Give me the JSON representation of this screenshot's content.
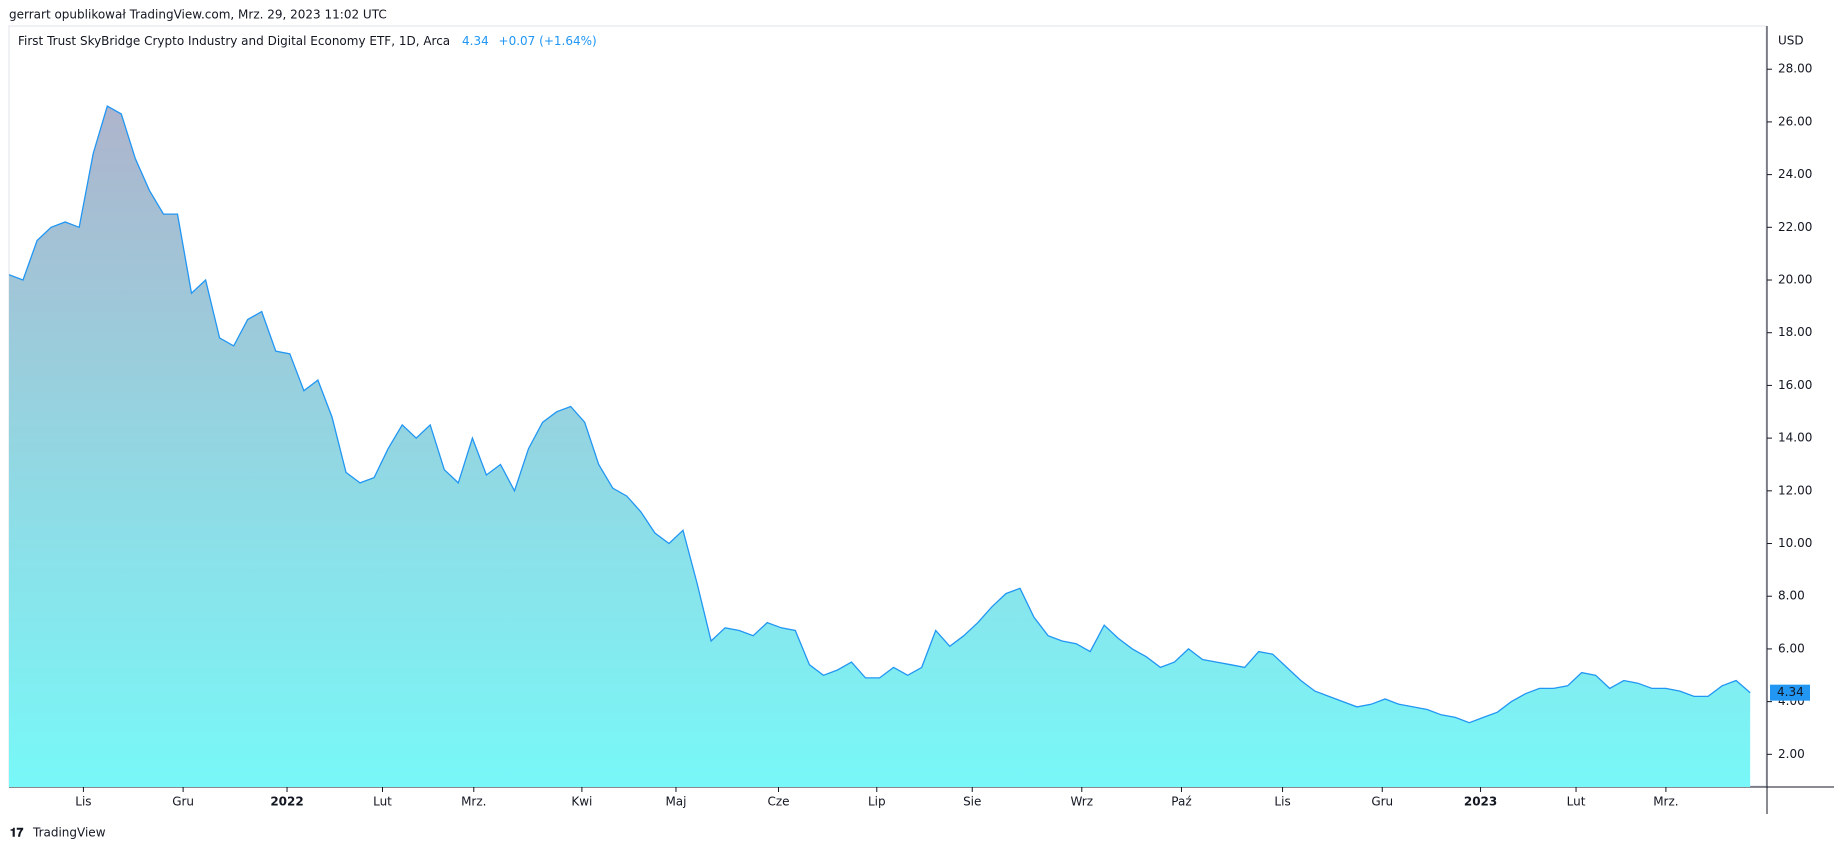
{
  "header": "gerrart opublikował TradingView.com, Mrz. 29, 2023 11:02 UTC",
  "footer": "TradingView",
  "chart_data": {
    "type": "area",
    "title": "First Trust SkyBridge Crypto Industry and Digital Economy ETF, 1D, Arca",
    "last_price": 4.34,
    "change_label": "+0.07 (+1.64%)",
    "y_axis_label": "USD",
    "color": "#2196f3",
    "values": [
      20.2,
      20.0,
      21.5,
      22.0,
      22.2,
      22.0,
      24.8,
      26.6,
      26.3,
      24.6,
      23.4,
      22.5,
      22.5,
      19.5,
      20.0,
      17.8,
      17.5,
      18.5,
      18.8,
      17.3,
      17.2,
      15.8,
      16.2,
      14.8,
      12.7,
      12.3,
      12.5,
      13.6,
      14.5,
      14.0,
      14.5,
      12.8,
      12.3,
      14.0,
      12.6,
      13.0,
      12.0,
      13.6,
      14.6,
      15.0,
      15.2,
      14.6,
      13.0,
      12.1,
      11.8,
      11.2,
      10.4,
      10.0,
      10.5,
      8.5,
      6.3,
      6.8,
      6.7,
      6.5,
      7.0,
      6.8,
      6.7,
      5.4,
      5.0,
      5.2,
      5.5,
      4.9,
      4.9,
      5.3,
      5.0,
      5.3,
      6.7,
      6.1,
      6.5,
      7.0,
      7.6,
      8.1,
      8.3,
      7.2,
      6.5,
      6.3,
      6.2,
      5.9,
      6.9,
      6.4,
      6.0,
      5.7,
      5.3,
      5.5,
      6.0,
      5.6,
      5.5,
      5.4,
      5.3,
      5.9,
      5.8,
      5.3,
      4.8,
      4.4,
      4.2,
      4.0,
      3.8,
      3.9,
      4.1,
      3.9,
      3.8,
      3.7,
      3.5,
      3.4,
      3.2,
      3.4,
      3.6,
      4.0,
      4.3,
      4.5,
      4.5,
      4.6,
      5.1,
      5.0,
      4.5,
      4.8,
      4.7,
      4.5,
      4.5,
      4.4,
      4.2,
      4.2,
      4.6,
      4.8,
      4.34
    ],
    "xlim": [
      0,
      125.2
    ],
    "xticks": [
      {
        "value": 5.3,
        "label": "Lis"
      },
      {
        "value": 12.4,
        "label": "Gru"
      },
      {
        "value": 19.8,
        "label": "2022"
      },
      {
        "value": 26.6,
        "label": "Lut"
      },
      {
        "value": 33.1,
        "label": "Mrz."
      },
      {
        "value": 40.8,
        "label": "Kwi"
      },
      {
        "value": 47.5,
        "label": "Maj"
      },
      {
        "value": 54.8,
        "label": "Cze"
      },
      {
        "value": 61.8,
        "label": "Lip"
      },
      {
        "value": 68.6,
        "label": "Sie"
      },
      {
        "value": 76.4,
        "label": "Wrz"
      },
      {
        "value": 83.5,
        "label": "Paź"
      },
      {
        "value": 90.7,
        "label": "Lis"
      },
      {
        "value": 97.8,
        "label": "Gru"
      },
      {
        "value": 104.8,
        "label": "2023"
      },
      {
        "value": 111.6,
        "label": "Lut"
      },
      {
        "value": 118,
        "label": "Mrz."
      }
    ],
    "ylim": [
      0.76,
      29.64
    ],
    "yticks": [
      {
        "value": 2,
        "label": "2.00"
      },
      {
        "value": 4,
        "label": "4.00"
      },
      {
        "value": 6,
        "label": "6.00"
      },
      {
        "value": 8,
        "label": "8.00"
      },
      {
        "value": 10,
        "label": "10.00"
      },
      {
        "value": 12,
        "label": "12.00"
      },
      {
        "value": 14,
        "label": "14.00"
      },
      {
        "value": 16,
        "label": "16.00"
      },
      {
        "value": 18,
        "label": "18.00"
      },
      {
        "value": 20,
        "label": "20.00"
      },
      {
        "value": 22,
        "label": "22.00"
      },
      {
        "value": 24,
        "label": "24.00"
      },
      {
        "value": 26,
        "label": "26.00"
      },
      {
        "value": 28,
        "label": "28.00"
      }
    ]
  }
}
